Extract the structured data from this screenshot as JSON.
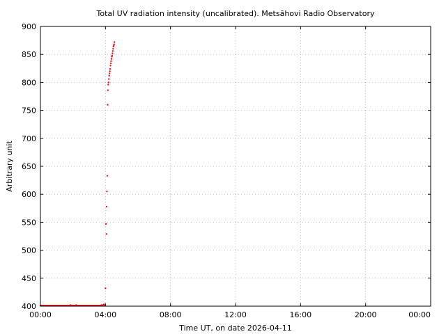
{
  "chart_data": {
    "type": "scatter",
    "title": "Total UV radiation intensity (uncalibrated). Metsähovi Radio Observatory",
    "xlabel": "Time UT, on date 2026-04-11",
    "ylabel": "Arbitrary unit",
    "x_unit": "hours UT",
    "xlim": [
      0,
      24
    ],
    "ylim": [
      400,
      900
    ],
    "x_ticks": [
      {
        "value": 0,
        "label": "00:00"
      },
      {
        "value": 4,
        "label": "04:00"
      },
      {
        "value": 8,
        "label": "08:00"
      },
      {
        "value": 12,
        "label": "12:00"
      },
      {
        "value": 16,
        "label": "16:00"
      },
      {
        "value": 20,
        "label": "20:00"
      },
      {
        "value": 24,
        "label": "00:00"
      }
    ],
    "y_ticks": [
      {
        "value": 400,
        "label": "400"
      },
      {
        "value": 450,
        "label": "450"
      },
      {
        "value": 500,
        "label": "500"
      },
      {
        "value": 550,
        "label": "550"
      },
      {
        "value": 600,
        "label": "600"
      },
      {
        "value": 650,
        "label": "650"
      },
      {
        "value": 700,
        "label": "700"
      },
      {
        "value": 750,
        "label": "750"
      },
      {
        "value": 800,
        "label": "800"
      },
      {
        "value": 850,
        "label": "850"
      },
      {
        "value": 900,
        "label": "900"
      }
    ],
    "grid": true,
    "marker_color": "#e8141a",
    "series": [
      {
        "points": [
          [
            0.0,
            401
          ],
          [
            0.05,
            401
          ],
          [
            0.1,
            401
          ],
          [
            0.15,
            401
          ],
          [
            0.2,
            401
          ],
          [
            0.25,
            401
          ],
          [
            0.3,
            401
          ],
          [
            0.35,
            401
          ],
          [
            0.4,
            401
          ],
          [
            0.45,
            401
          ],
          [
            0.5,
            401
          ],
          [
            0.55,
            401
          ],
          [
            0.6,
            401
          ],
          [
            0.65,
            401
          ],
          [
            0.7,
            401
          ],
          [
            0.75,
            401
          ],
          [
            0.8,
            401
          ],
          [
            0.85,
            401
          ],
          [
            0.9,
            401
          ],
          [
            0.95,
            401
          ],
          [
            1.0,
            401
          ],
          [
            1.05,
            401
          ],
          [
            1.1,
            401
          ],
          [
            1.15,
            401
          ],
          [
            1.2,
            401
          ],
          [
            1.25,
            401
          ],
          [
            1.3,
            401
          ],
          [
            1.35,
            401
          ],
          [
            1.4,
            401
          ],
          [
            1.45,
            401
          ],
          [
            1.5,
            401
          ],
          [
            1.55,
            401
          ],
          [
            1.6,
            401
          ],
          [
            1.65,
            401
          ],
          [
            1.7,
            401
          ],
          [
            1.75,
            401
          ],
          [
            1.8,
            401
          ],
          [
            1.85,
            402
          ],
          [
            1.9,
            401
          ],
          [
            1.95,
            401
          ],
          [
            2.0,
            401
          ],
          [
            2.05,
            401
          ],
          [
            2.1,
            401
          ],
          [
            2.15,
            401
          ],
          [
            2.2,
            402
          ],
          [
            2.25,
            401
          ],
          [
            2.3,
            401
          ],
          [
            2.35,
            401
          ],
          [
            2.4,
            401
          ],
          [
            2.45,
            401
          ],
          [
            2.5,
            401
          ],
          [
            2.55,
            401
          ],
          [
            2.6,
            401
          ],
          [
            2.65,
            401
          ],
          [
            2.7,
            401
          ],
          [
            2.75,
            401
          ],
          [
            2.8,
            401
          ],
          [
            2.85,
            401
          ],
          [
            2.9,
            401
          ],
          [
            2.95,
            401
          ],
          [
            3.0,
            401
          ],
          [
            3.05,
            401
          ],
          [
            3.1,
            401
          ],
          [
            3.15,
            401
          ],
          [
            3.2,
            401
          ],
          [
            3.25,
            401
          ],
          [
            3.3,
            401
          ],
          [
            3.35,
            401
          ],
          [
            3.4,
            401
          ],
          [
            3.45,
            401
          ],
          [
            3.5,
            401
          ],
          [
            3.55,
            401
          ],
          [
            3.6,
            401
          ],
          [
            3.65,
            401
          ],
          [
            3.7,
            401
          ],
          [
            3.75,
            402
          ],
          [
            3.8,
            401
          ],
          [
            3.85,
            402
          ],
          [
            3.9,
            403
          ],
          [
            3.95,
            402
          ],
          [
            4.0,
            432
          ],
          [
            4.03,
            547
          ],
          [
            4.06,
            529
          ],
          [
            4.07,
            578
          ],
          [
            4.09,
            605
          ],
          [
            4.11,
            633
          ],
          [
            4.13,
            760
          ],
          [
            4.15,
            786
          ],
          [
            4.17,
            796
          ],
          [
            4.19,
            800
          ],
          [
            4.21,
            806
          ],
          [
            4.23,
            812
          ],
          [
            4.25,
            816
          ],
          [
            4.27,
            820
          ],
          [
            4.29,
            824
          ],
          [
            4.31,
            830
          ],
          [
            4.33,
            834
          ],
          [
            4.35,
            838
          ],
          [
            4.37,
            842
          ],
          [
            4.39,
            846
          ],
          [
            4.41,
            848
          ],
          [
            4.43,
            852
          ],
          [
            4.45,
            856
          ],
          [
            4.47,
            860
          ],
          [
            4.49,
            864
          ],
          [
            4.51,
            866
          ],
          [
            4.53,
            868
          ],
          [
            4.55,
            872
          ]
        ]
      }
    ]
  }
}
